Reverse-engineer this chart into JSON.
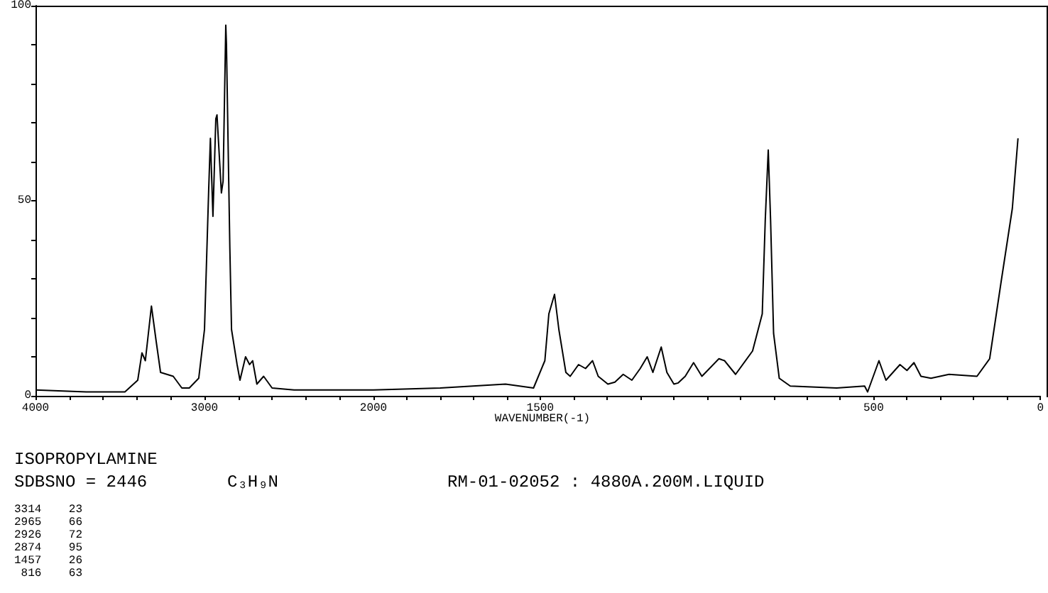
{
  "chart_data": [
    {
      "type": "line",
      "title": "ISOPROPYLAMINE",
      "annotations": [
        "SDBSNO = 2446",
        "C₃H₉N",
        "RM-01-02052 : 4880A.200M.LIQUID",
        "3314 23",
        "2965 66",
        "2926 72",
        "2874 95",
        "1457 26",
        " 816 63"
      ],
      "marker": "none",
      "xlim": [
        4000,
        2000
      ],
      "ylim": [
        0,
        100
      ],
      "xticks": [
        4000,
        {
          "value": 3800,
          "label": null
        },
        {
          "value": 3600,
          "label": null
        },
        {
          "value": 3400,
          "label": null
        },
        {
          "value": 3200,
          "label": null
        },
        3000,
        {
          "value": 2800,
          "label": null
        },
        {
          "value": 2600,
          "label": null
        },
        {
          "value": 2400,
          "label": null
        },
        {
          "value": 2200,
          "label": null
        },
        2000
      ],
      "yticks": [
        0,
        {
          "value": 10,
          "label": null
        },
        {
          "value": 20,
          "label": null
        },
        {
          "value": 30,
          "label": null
        },
        {
          "value": 40,
          "label": null
        },
        50,
        {
          "value": 60,
          "label": null
        },
        {
          "value": 70,
          "label": null
        },
        {
          "value": 80,
          "label": null
        },
        {
          "value": 90,
          "label": null
        },
        100
      ],
      "series": [
        {
          "color": "#000000",
          "x": [
            4000,
            3700,
            3471,
            3395,
            3370,
            3350,
            3314,
            3286,
            3260,
            3185,
            3134,
            3090,
            3034,
            3000,
            2975,
            2965,
            2950,
            2933,
            2926,
            2900,
            2890,
            2874,
            2870,
            2850,
            2840,
            2807,
            2790,
            2757,
            2733,
            2715,
            2690,
            2650,
            2600,
            2470,
            2200,
            2000
          ],
          "values": [
            1.5,
            1,
            1,
            4,
            11,
            9,
            23,
            14,
            6,
            5,
            2,
            2,
            4.5,
            17,
            53,
            66,
            46,
            71,
            72,
            52,
            55,
            95,
            90,
            38,
            17,
            8,
            4,
            10,
            8,
            9,
            3,
            5,
            2,
            1.5,
            1.5,
            1.5
          ]
        }
      ]
    },
    {
      "type": "line",
      "xlabel": "WAVENUMBER(-1)",
      "marker": "none",
      "tick_labels": "x",
      "xlim": [
        2000,
        0
      ],
      "ylim": [
        0,
        100
      ],
      "xticks": [
        {
          "value": 2000,
          "label": null
        },
        {
          "value": 1900,
          "label": null
        },
        {
          "value": 1800,
          "label": null
        },
        {
          "value": 1700,
          "label": null
        },
        {
          "value": 1600,
          "label": null
        },
        1500,
        {
          "value": 1400,
          "label": null
        },
        {
          "value": 1300,
          "label": null
        },
        {
          "value": 1200,
          "label": null
        },
        {
          "value": 1100,
          "label": null
        },
        {
          "value": 1000,
          "label": null
        },
        {
          "value": 900,
          "label": null
        },
        {
          "value": 800,
          "label": null
        },
        {
          "value": 700,
          "label": null
        },
        {
          "value": 600,
          "label": null
        },
        500,
        {
          "value": 400,
          "label": null
        },
        {
          "value": 300,
          "label": null
        },
        {
          "value": 200,
          "label": null
        },
        {
          "value": 100,
          "label": null
        },
        0
      ],
      "series": [
        {
          "color": "#000000",
          "x": [
            2000,
            1800,
            1604,
            1520,
            1486,
            1474,
            1457,
            1444,
            1423,
            1410,
            1385,
            1364,
            1343,
            1326,
            1297,
            1276,
            1251,
            1225,
            1200,
            1179,
            1162,
            1137,
            1120,
            1099,
            1086,
            1065,
            1040,
            1015,
            964,
            947,
            914,
            863,
            834,
            825,
            816,
            809,
            800,
            783,
            750,
            611,
            527,
            518,
            484,
            463,
            421,
            400,
            379,
            358,
            328,
            274,
            190,
            152,
            118,
            84,
            67
          ],
          "values": [
            1.5,
            2,
            3,
            2,
            9,
            21,
            26,
            17,
            6,
            5,
            8,
            7,
            9,
            5,
            3,
            3.5,
            5.5,
            4,
            7,
            10,
            6,
            12.5,
            6,
            3,
            3.3,
            5,
            8.5,
            5,
            9.5,
            9,
            5.5,
            11.5,
            21,
            45,
            63,
            45,
            16,
            4.5,
            2.5,
            2,
            2.5,
            1,
            9,
            4,
            8,
            6.5,
            8.5,
            5,
            4.5,
            5.5,
            5,
            9.5,
            29,
            48,
            66
          ]
        }
      ]
    }
  ]
}
